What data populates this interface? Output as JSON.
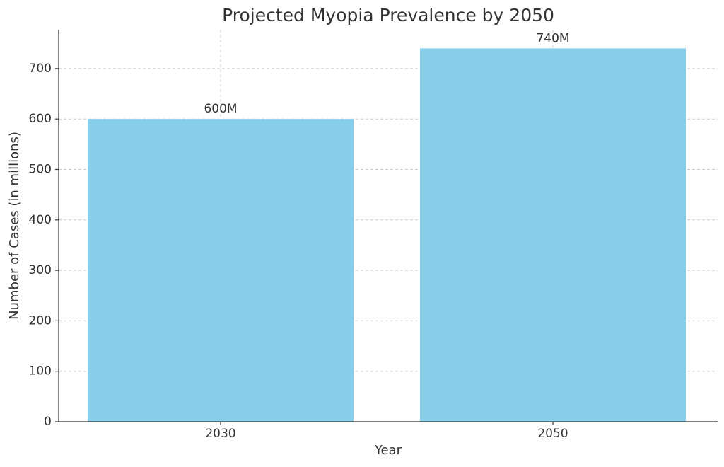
{
  "chart_data": {
    "type": "bar",
    "title": "Projected Myopia Prevalence by 2050",
    "x_label": "Year",
    "y_label": "Number of Cases (in millions)",
    "categories": [
      "2030",
      "2050"
    ],
    "values": [
      600,
      740
    ],
    "value_labels": [
      "600M",
      "740M"
    ],
    "color": "#87ceeb",
    "ylim": [
      0,
      777
    ],
    "yticks": [
      0,
      100,
      200,
      300,
      400,
      500,
      600,
      700
    ],
    "grid": true
  }
}
